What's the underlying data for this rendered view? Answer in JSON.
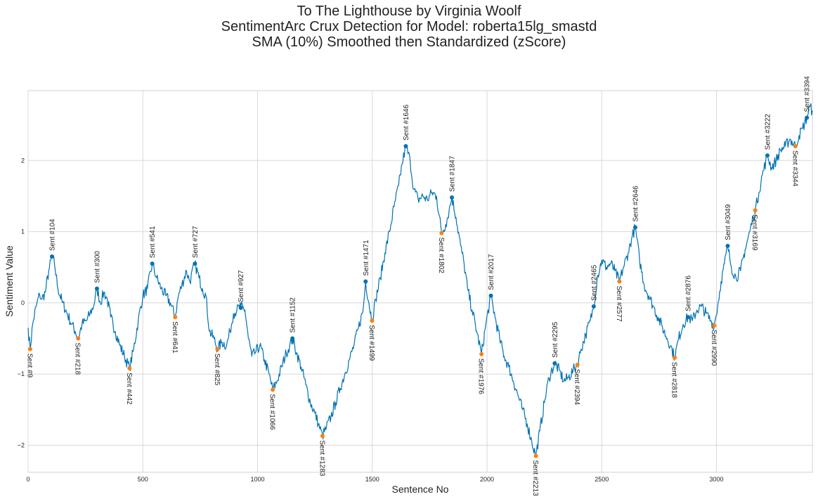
{
  "chart_data": {
    "type": "line",
    "title": [
      "To The Lighthouse by Virginia Woolf",
      "SentimentArc Crux Detection for Model: roberta15lg_smastd",
      "SMA (10%) Smoothed then Standardized (zScore)"
    ],
    "xlabel": "Sentence No",
    "ylabel": "Sentiment Value",
    "xlim": [
      0,
      3418
    ],
    "ylim": [
      -2.38,
      2.98
    ],
    "xticks": [
      0,
      500,
      1000,
      1500,
      2000,
      2500,
      3000
    ],
    "yticks": [
      -2,
      -1,
      0,
      1,
      2
    ],
    "grid": true,
    "line_color": "#0072b2",
    "peak_color": "#0072b2",
    "valley_color": "#ff7f0e",
    "series": [
      {
        "points": [
          [
            0,
            -0.35
          ],
          [
            9,
            -0.65
          ],
          [
            20,
            -0.3
          ],
          [
            35,
            -0.05
          ],
          [
            50,
            0.12
          ],
          [
            60,
            0.05
          ],
          [
            75,
            0.15
          ],
          [
            90,
            0.45
          ],
          [
            104,
            0.65
          ],
          [
            115,
            0.55
          ],
          [
            130,
            0.2
          ],
          [
            150,
            0.0
          ],
          [
            170,
            -0.15
          ],
          [
            190,
            -0.3
          ],
          [
            205,
            -0.4
          ],
          [
            218,
            -0.5
          ],
          [
            235,
            -0.3
          ],
          [
            255,
            -0.25
          ],
          [
            270,
            -0.15
          ],
          [
            285,
            -0.05
          ],
          [
            300,
            0.2
          ],
          [
            315,
            0.0
          ],
          [
            330,
            0.15
          ],
          [
            345,
            0.05
          ],
          [
            360,
            -0.2
          ],
          [
            380,
            -0.4
          ],
          [
            400,
            -0.6
          ],
          [
            420,
            -0.75
          ],
          [
            442,
            -0.92
          ],
          [
            460,
            -0.65
          ],
          [
            480,
            -0.25
          ],
          [
            500,
            0.1
          ],
          [
            520,
            0.2
          ],
          [
            541,
            0.55
          ],
          [
            560,
            0.35
          ],
          [
            580,
            0.2
          ],
          [
            600,
            0.1
          ],
          [
            620,
            0.0
          ],
          [
            641,
            -0.2
          ],
          [
            655,
            0.1
          ],
          [
            670,
            0.25
          ],
          [
            690,
            0.45
          ],
          [
            705,
            0.3
          ],
          [
            727,
            0.55
          ],
          [
            745,
            0.35
          ],
          [
            760,
            0.2
          ],
          [
            775,
            0.1
          ],
          [
            790,
            -0.4
          ],
          [
            810,
            -0.5
          ],
          [
            825,
            -0.65
          ],
          [
            845,
            -0.55
          ],
          [
            865,
            -0.6
          ],
          [
            880,
            -0.4
          ],
          [
            895,
            -0.15
          ],
          [
            910,
            -0.1
          ],
          [
            927,
            -0.05
          ],
          [
            945,
            -0.1
          ],
          [
            960,
            -0.5
          ],
          [
            975,
            -0.75
          ],
          [
            990,
            -0.7
          ],
          [
            1010,
            -0.6
          ],
          [
            1030,
            -0.8
          ],
          [
            1050,
            -1.0
          ],
          [
            1066,
            -1.22
          ],
          [
            1085,
            -1.1
          ],
          [
            1105,
            -0.9
          ],
          [
            1125,
            -0.7
          ],
          [
            1140,
            -0.6
          ],
          [
            1152,
            -0.5
          ],
          [
            1170,
            -0.7
          ],
          [
            1190,
            -0.9
          ],
          [
            1210,
            -1.15
          ],
          [
            1230,
            -1.4
          ],
          [
            1250,
            -1.55
          ],
          [
            1265,
            -1.7
          ],
          [
            1283,
            -1.87
          ],
          [
            1300,
            -1.75
          ],
          [
            1320,
            -1.6
          ],
          [
            1340,
            -1.4
          ],
          [
            1360,
            -1.2
          ],
          [
            1380,
            -1.0
          ],
          [
            1400,
            -0.8
          ],
          [
            1420,
            -0.6
          ],
          [
            1440,
            -0.35
          ],
          [
            1460,
            -0.1
          ],
          [
            1471,
            0.3
          ],
          [
            1485,
            0.0
          ],
          [
            1499,
            -0.25
          ],
          [
            1515,
            0.05
          ],
          [
            1535,
            0.35
          ],
          [
            1555,
            0.7
          ],
          [
            1575,
            1.0
          ],
          [
            1595,
            1.35
          ],
          [
            1615,
            1.65
          ],
          [
            1630,
            1.95
          ],
          [
            1646,
            2.2
          ],
          [
            1665,
            2.0
          ],
          [
            1680,
            1.6
          ],
          [
            1700,
            1.45
          ],
          [
            1720,
            1.5
          ],
          [
            1740,
            1.45
          ],
          [
            1760,
            1.55
          ],
          [
            1780,
            1.5
          ],
          [
            1802,
            0.98
          ],
          [
            1820,
            1.1
          ],
          [
            1835,
            1.3
          ],
          [
            1847,
            1.48
          ],
          [
            1865,
            1.2
          ],
          [
            1885,
            0.8
          ],
          [
            1900,
            0.55
          ],
          [
            1915,
            0.2
          ],
          [
            1935,
            -0.1
          ],
          [
            1955,
            -0.4
          ],
          [
            1976,
            -0.72
          ],
          [
            1995,
            -0.3
          ],
          [
            2017,
            0.1
          ],
          [
            2035,
            -0.2
          ],
          [
            2055,
            -0.5
          ],
          [
            2075,
            -0.75
          ],
          [
            2095,
            -0.9
          ],
          [
            2115,
            -1.1
          ],
          [
            2135,
            -1.3
          ],
          [
            2155,
            -1.5
          ],
          [
            2175,
            -1.7
          ],
          [
            2195,
            -1.95
          ],
          [
            2213,
            -2.15
          ],
          [
            2230,
            -1.8
          ],
          [
            2250,
            -1.4
          ],
          [
            2270,
            -1.05
          ],
          [
            2295,
            -0.85
          ],
          [
            2315,
            -0.95
          ],
          [
            2335,
            -1.1
          ],
          [
            2355,
            -1.05
          ],
          [
            2375,
            -0.95
          ],
          [
            2394,
            -0.87
          ],
          [
            2410,
            -0.65
          ],
          [
            2430,
            -0.45
          ],
          [
            2450,
            -0.25
          ],
          [
            2465,
            -0.05
          ],
          [
            2480,
            0.35
          ],
          [
            2500,
            0.6
          ],
          [
            2520,
            0.5
          ],
          [
            2540,
            0.55
          ],
          [
            2557,
            0.45
          ],
          [
            2577,
            0.3
          ],
          [
            2595,
            0.5
          ],
          [
            2615,
            0.7
          ],
          [
            2630,
            0.9
          ],
          [
            2646,
            1.06
          ],
          [
            2665,
            0.6
          ],
          [
            2685,
            0.25
          ],
          [
            2705,
            0.1
          ],
          [
            2725,
            -0.05
          ],
          [
            2745,
            -0.2
          ],
          [
            2765,
            -0.35
          ],
          [
            2785,
            -0.5
          ],
          [
            2800,
            -0.6
          ],
          [
            2818,
            -0.77
          ],
          [
            2835,
            -0.5
          ],
          [
            2855,
            -0.3
          ],
          [
            2876,
            -0.2
          ],
          [
            2895,
            -0.25
          ],
          [
            2915,
            -0.1
          ],
          [
            2935,
            -0.05
          ],
          [
            2955,
            -0.15
          ],
          [
            2975,
            -0.25
          ],
          [
            2990,
            -0.32
          ],
          [
            3005,
            -0.05
          ],
          [
            3020,
            0.3
          ],
          [
            3035,
            0.55
          ],
          [
            3049,
            0.8
          ],
          [
            3065,
            0.5
          ],
          [
            3085,
            0.35
          ],
          [
            3105,
            0.45
          ],
          [
            3125,
            0.75
          ],
          [
            3145,
            1.0
          ],
          [
            3160,
            1.2
          ],
          [
            3169,
            1.3
          ],
          [
            3185,
            1.55
          ],
          [
            3200,
            1.8
          ],
          [
            3222,
            2.07
          ],
          [
            3240,
            1.9
          ],
          [
            3260,
            2.0
          ],
          [
            3280,
            2.15
          ],
          [
            3300,
            2.2
          ],
          [
            3320,
            2.3
          ],
          [
            3344,
            2.2
          ],
          [
            3360,
            2.35
          ],
          [
            3375,
            2.45
          ],
          [
            3394,
            2.6
          ],
          [
            3405,
            2.75
          ],
          [
            3418,
            2.7
          ]
        ]
      }
    ],
    "peaks": [
      {
        "x": 104,
        "y": 0.65,
        "label": "Sent #104"
      },
      {
        "x": 300,
        "y": 0.2,
        "label": "Sent #300"
      },
      {
        "x": 541,
        "y": 0.55,
        "label": "Sent #541"
      },
      {
        "x": 727,
        "y": 0.55,
        "label": "Sent #727"
      },
      {
        "x": 927,
        "y": -0.07,
        "label": "Sent #927"
      },
      {
        "x": 1152,
        "y": -0.5,
        "label": "Sent #1152"
      },
      {
        "x": 1471,
        "y": 0.3,
        "label": "Sent #1471"
      },
      {
        "x": 1646,
        "y": 2.2,
        "label": "Sent #1646"
      },
      {
        "x": 1847,
        "y": 1.48,
        "label": "Sent #1847"
      },
      {
        "x": 2017,
        "y": 0.1,
        "label": "Sent #2017"
      },
      {
        "x": 2295,
        "y": -0.85,
        "label": "Sent #2295"
      },
      {
        "x": 2465,
        "y": -0.05,
        "label": "Sent #2465"
      },
      {
        "x": 2646,
        "y": 1.06,
        "label": "Sent #2646"
      },
      {
        "x": 2876,
        "y": -0.2,
        "label": "Sent #2876"
      },
      {
        "x": 3049,
        "y": 0.8,
        "label": "Sent #3049"
      },
      {
        "x": 3222,
        "y": 2.07,
        "label": "Sent #3222"
      },
      {
        "x": 3394,
        "y": 2.6,
        "label": "Sent #3394"
      }
    ],
    "valleys": [
      {
        "x": 9,
        "y": -0.65,
        "label": "Sent #9"
      },
      {
        "x": 218,
        "y": -0.5,
        "label": "Sent #218"
      },
      {
        "x": 442,
        "y": -0.92,
        "label": "Sent #442"
      },
      {
        "x": 641,
        "y": -0.2,
        "label": "Sent #641"
      },
      {
        "x": 825,
        "y": -0.65,
        "label": "Sent #825"
      },
      {
        "x": 1066,
        "y": -1.22,
        "label": "Sent #1066"
      },
      {
        "x": 1283,
        "y": -1.87,
        "label": "Sent #1283"
      },
      {
        "x": 1499,
        "y": -0.25,
        "label": "Sent #1499"
      },
      {
        "x": 1802,
        "y": 0.98,
        "label": "Sent #1802"
      },
      {
        "x": 1976,
        "y": -0.72,
        "label": "Sent #1976"
      },
      {
        "x": 2213,
        "y": -2.15,
        "label": "Sent #2213"
      },
      {
        "x": 2394,
        "y": -0.87,
        "label": "Sent #2394"
      },
      {
        "x": 2577,
        "y": 0.3,
        "label": "Sent #2577"
      },
      {
        "x": 2818,
        "y": -0.77,
        "label": "Sent #2818"
      },
      {
        "x": 2990,
        "y": -0.32,
        "label": "Sent #2990"
      },
      {
        "x": 3169,
        "y": 1.3,
        "label": "Sent #3169"
      },
      {
        "x": 3344,
        "y": 2.2,
        "label": "Sent #3344"
      }
    ]
  }
}
